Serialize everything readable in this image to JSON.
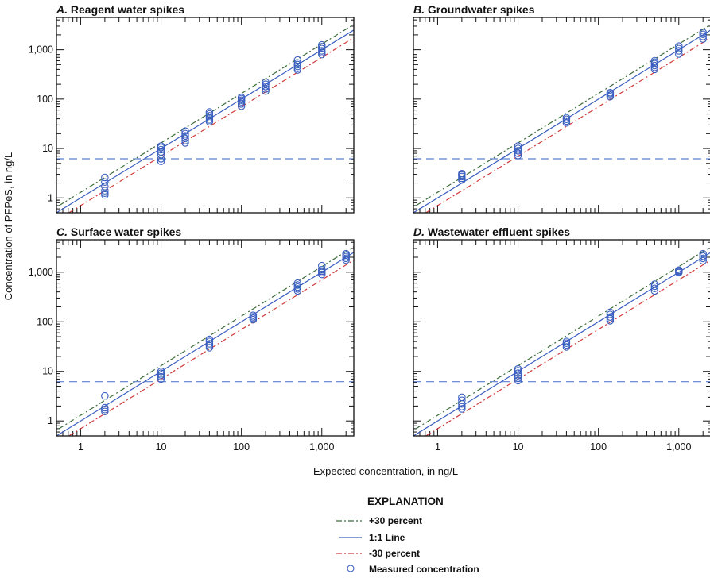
{
  "figure": {
    "ylabel": "Concentration of PFPeS, in ng/L",
    "xlabel": "Expected concentration, in ng/L"
  },
  "legend": {
    "title": "EXPLANATION",
    "items": [
      {
        "key": "plus30",
        "label": "+30 percent",
        "color": "#3a6b3a",
        "style": "dash-dot"
      },
      {
        "key": "one_to_one",
        "label": "1:1 Line",
        "color": "#3b5fc0",
        "style": "solid"
      },
      {
        "key": "minus30",
        "label": "-30 percent",
        "color": "#d23a3a",
        "style": "dash-dot"
      },
      {
        "key": "measured",
        "label": "Measured concentration",
        "color": "#3b5fc0",
        "style": "open-circle"
      }
    ]
  },
  "colors": {
    "plus30": "#3a6b3a",
    "one_to_one": "#3b5fc0",
    "minus30": "#d23a3a",
    "marker": "#3b5fc0",
    "reporting_limit": "#5b7fd0",
    "axis": "#111111"
  },
  "chart_data": [
    {
      "type": "scatter",
      "panel": "A",
      "title_letter": "A.",
      "title": "Reagent water spikes",
      "xlabel": "Expected concentration, in ng/L",
      "ylabel": "Concentration of PFPeS, in ng/L",
      "xscale": "log",
      "yscale": "log",
      "xlim": [
        0.5,
        2500
      ],
      "ylim": [
        0.5,
        4500
      ],
      "x_ticks": [
        1,
        10,
        100,
        1000
      ],
      "x_tick_labels": [
        "1",
        "10",
        "100",
        "1,000"
      ],
      "y_ticks": [
        1,
        10,
        100,
        1000
      ],
      "y_tick_labels": [
        "1",
        "10",
        "100",
        "1,000"
      ],
      "show_x_tick_labels": false,
      "show_y_tick_labels": true,
      "reporting_limit_line": 6.2,
      "reference_lines": {
        "plus30": 1.3,
        "one_to_one": 1.0,
        "minus30": 0.7
      },
      "points": [
        {
          "x": 2,
          "y": [
            1.15,
            1.25,
            1.4,
            1.7,
            2.1,
            2.6
          ]
        },
        {
          "x": 10,
          "y": [
            5.5,
            6.2,
            7.5,
            8.5,
            9.5,
            10.5,
            11.2
          ]
        },
        {
          "x": 20,
          "y": [
            13,
            14.5,
            16,
            18,
            20,
            22.5
          ]
        },
        {
          "x": 40,
          "y": [
            35,
            38,
            42,
            46,
            50,
            55
          ]
        },
        {
          "x": 100,
          "y": [
            72,
            80,
            88,
            95,
            102,
            108
          ]
        },
        {
          "x": 200,
          "y": [
            145,
            160,
            180,
            200,
            220
          ]
        },
        {
          "x": 500,
          "y": [
            390,
            420,
            460,
            500,
            540,
            620
          ]
        },
        {
          "x": 1000,
          "y": [
            800,
            880,
            950,
            1050,
            1150,
            1250
          ]
        }
      ]
    },
    {
      "type": "scatter",
      "panel": "B",
      "title_letter": "B.",
      "title": "Groundwater spikes",
      "xlabel": "Expected concentration, in ng/L",
      "ylabel": "Concentration of PFPeS, in ng/L",
      "xscale": "log",
      "yscale": "log",
      "xlim": [
        0.5,
        2500
      ],
      "ylim": [
        0.5,
        4500
      ],
      "x_ticks": [
        1,
        10,
        100,
        1000
      ],
      "x_tick_labels": [
        "1",
        "10",
        "100",
        "1,000"
      ],
      "y_ticks": [
        1,
        10,
        100,
        1000
      ],
      "y_tick_labels": [
        "1",
        "10",
        "100",
        "1,000"
      ],
      "show_x_tick_labels": false,
      "show_y_tick_labels": false,
      "reporting_limit_line": 6.2,
      "reference_lines": {
        "plus30": 1.3,
        "one_to_one": 1.0,
        "minus30": 0.7
      },
      "points": [
        {
          "x": 2,
          "y": [
            2.3,
            2.5,
            2.7,
            2.9,
            3.1
          ]
        },
        {
          "x": 10,
          "y": [
            7.2,
            8.0,
            9.0,
            10.0,
            11.2
          ]
        },
        {
          "x": 40,
          "y": [
            33,
            36,
            39,
            42
          ]
        },
        {
          "x": 140,
          "y": [
            112,
            120,
            128,
            135
          ]
        },
        {
          "x": 500,
          "y": [
            400,
            440,
            480,
            520,
            560,
            600
          ]
        },
        {
          "x": 1000,
          "y": [
            820,
            950,
            1050,
            1180
          ]
        },
        {
          "x": 2000,
          "y": [
            1650,
            1850,
            2050,
            2250
          ]
        }
      ]
    },
    {
      "type": "scatter",
      "panel": "C",
      "title_letter": "C.",
      "title": "Surface water spikes",
      "xlabel": "Expected concentration, in ng/L",
      "ylabel": "Concentration of PFPeS, in ng/L",
      "xscale": "log",
      "yscale": "log",
      "xlim": [
        0.5,
        2500
      ],
      "ylim": [
        0.5,
        4500
      ],
      "x_ticks": [
        1,
        10,
        100,
        1000
      ],
      "x_tick_labels": [
        "1",
        "10",
        "100",
        "1,000"
      ],
      "y_ticks": [
        1,
        10,
        100,
        1000
      ],
      "y_tick_labels": [
        "1",
        "10",
        "100",
        "1,000"
      ],
      "show_x_tick_labels": true,
      "show_y_tick_labels": true,
      "reporting_limit_line": 6.2,
      "reference_lines": {
        "plus30": 1.3,
        "one_to_one": 1.0,
        "minus30": 0.7
      },
      "points": [
        {
          "x": 2,
          "y": [
            1.55,
            1.7,
            1.85,
            3.2
          ]
        },
        {
          "x": 10,
          "y": [
            7.0,
            7.8,
            8.5,
            9.2,
            10.0
          ]
        },
        {
          "x": 40,
          "y": [
            30,
            33,
            36,
            40,
            44
          ]
        },
        {
          "x": 140,
          "y": [
            110,
            118,
            126,
            135
          ]
        },
        {
          "x": 500,
          "y": [
            420,
            460,
            500,
            550,
            600
          ]
        },
        {
          "x": 1000,
          "y": [
            900,
            980,
            1050,
            1120,
            1350
          ]
        },
        {
          "x": 2000,
          "y": [
            1750,
            1900,
            2050,
            2200,
            2350
          ]
        }
      ]
    },
    {
      "type": "scatter",
      "panel": "D",
      "title_letter": "D.",
      "title": "Wastewater effluent spikes",
      "xlabel": "Expected concentration, in ng/L",
      "ylabel": "Concentration of PFPeS, in ng/L",
      "xscale": "log",
      "yscale": "log",
      "xlim": [
        0.5,
        2500
      ],
      "ylim": [
        0.5,
        4500
      ],
      "x_ticks": [
        1,
        10,
        100,
        1000
      ],
      "x_tick_labels": [
        "1",
        "10",
        "100",
        "1,000"
      ],
      "y_ticks": [
        1,
        10,
        100,
        1000
      ],
      "y_tick_labels": [
        "1",
        "10",
        "100",
        "1,000"
      ],
      "show_x_tick_labels": true,
      "show_y_tick_labels": false,
      "reporting_limit_line": 6.2,
      "reference_lines": {
        "plus30": 1.3,
        "one_to_one": 1.0,
        "minus30": 0.7
      },
      "points": [
        {
          "x": 2,
          "y": [
            1.75,
            1.95,
            2.2,
            2.6,
            3.0
          ]
        },
        {
          "x": 10,
          "y": [
            6.5,
            7.3,
            8.2,
            9.2,
            10.3,
            11.2
          ]
        },
        {
          "x": 40,
          "y": [
            31,
            34,
            37,
            40
          ]
        },
        {
          "x": 140,
          "y": [
            105,
            115,
            125,
            140,
            155
          ]
        },
        {
          "x": 500,
          "y": [
            420,
            470,
            520,
            570
          ]
        },
        {
          "x": 1000,
          "y": [
            980,
            1020,
            1060,
            1100
          ]
        },
        {
          "x": 2000,
          "y": [
            1700,
            1900,
            2100,
            2350
          ]
        }
      ]
    }
  ]
}
